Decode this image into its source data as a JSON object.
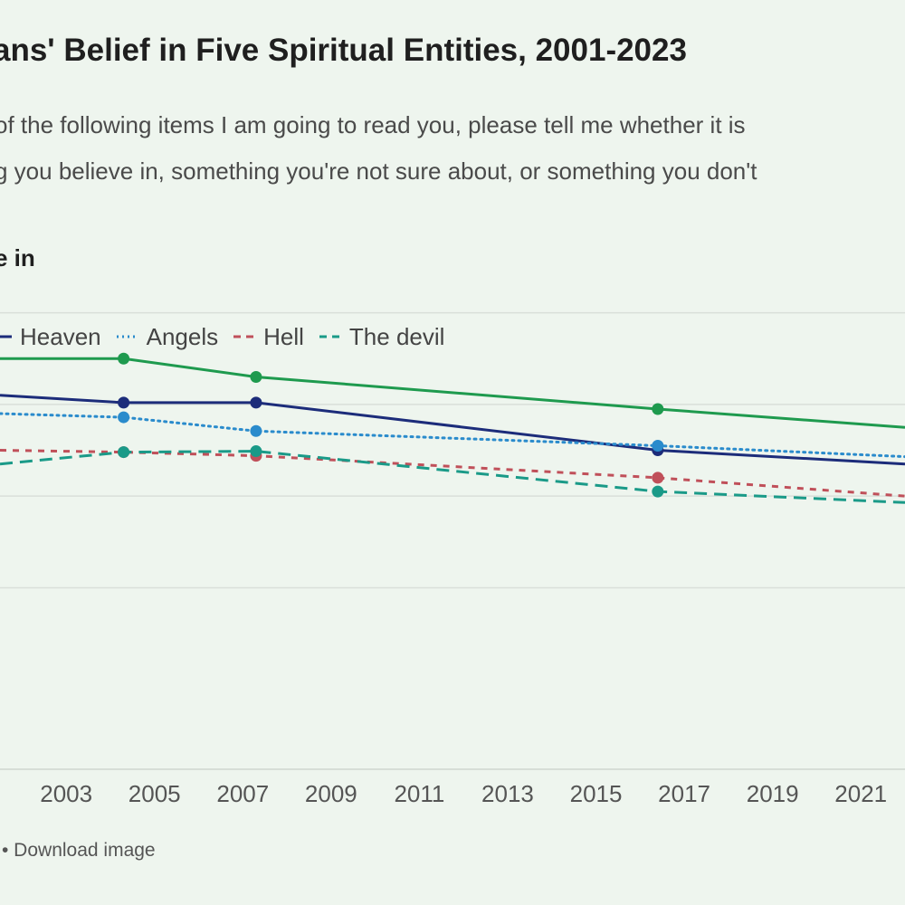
{
  "title": "ans' Belief in Five Spiritual Entities, 2001-2023",
  "subtitle_lines": [
    "of the following items I am going to read you, please tell me whether it is",
    "g you believe in, something you're not sure about, or something you don't"
  ],
  "kicker": "e in",
  "footer": "• Download image",
  "colors": {
    "background": "#eef5ee",
    "gridline": "#d9dfd9"
  },
  "chart_data": {
    "type": "line",
    "title": "ans' Belief in Five Spiritual Entities, 2001-2023",
    "xlabel": "",
    "ylabel": "",
    "xlim": [
      2001.5,
      2022.0
    ],
    "ylim": [
      40,
      95
    ],
    "grid": true,
    "legend_placement": "top-left",
    "x_ticks": [
      2003,
      2005,
      2007,
      2009,
      2011,
      2013,
      2015,
      2017,
      2019,
      2021
    ],
    "y_gridlines": [
      90,
      80,
      70,
      60
    ],
    "series": [
      {
        "name": "",
        "color": "#1e9a4e",
        "dash": "solid",
        "legend": false,
        "points": [
          [
            2001.5,
            85
          ],
          [
            2004.3,
            85
          ],
          [
            2007.3,
            83
          ],
          [
            2016.4,
            79.5
          ],
          [
            2022.0,
            77.5
          ]
        ]
      },
      {
        "name": "Heaven",
        "color": "#1c2c7a",
        "dash": "solid",
        "legend": true,
        "points": [
          [
            2001.5,
            81
          ],
          [
            2004.3,
            80.2
          ],
          [
            2007.3,
            80.2
          ],
          [
            2016.4,
            75
          ],
          [
            2022.0,
            73.5
          ]
        ]
      },
      {
        "name": "Angels",
        "color": "#2a8bcc",
        "dash": "dotted",
        "legend": true,
        "points": [
          [
            2001.5,
            79
          ],
          [
            2004.3,
            78.6
          ],
          [
            2007.3,
            77.1
          ],
          [
            2016.4,
            75.5
          ],
          [
            2022.0,
            74.3
          ]
        ]
      },
      {
        "name": "Hell",
        "color": "#c0505a",
        "dash": "dashed",
        "legend": true,
        "points": [
          [
            2001.5,
            75
          ],
          [
            2004.3,
            74.8
          ],
          [
            2007.3,
            74.4
          ],
          [
            2016.4,
            72
          ],
          [
            2022.0,
            70
          ]
        ]
      },
      {
        "name": "The devil",
        "color": "#1a9a88",
        "dash": "longdash",
        "legend": true,
        "points": [
          [
            2001.5,
            73.5
          ],
          [
            2004.3,
            74.8
          ],
          [
            2007.3,
            74.9
          ],
          [
            2016.4,
            70.5
          ],
          [
            2022.0,
            69.3
          ]
        ]
      }
    ]
  }
}
